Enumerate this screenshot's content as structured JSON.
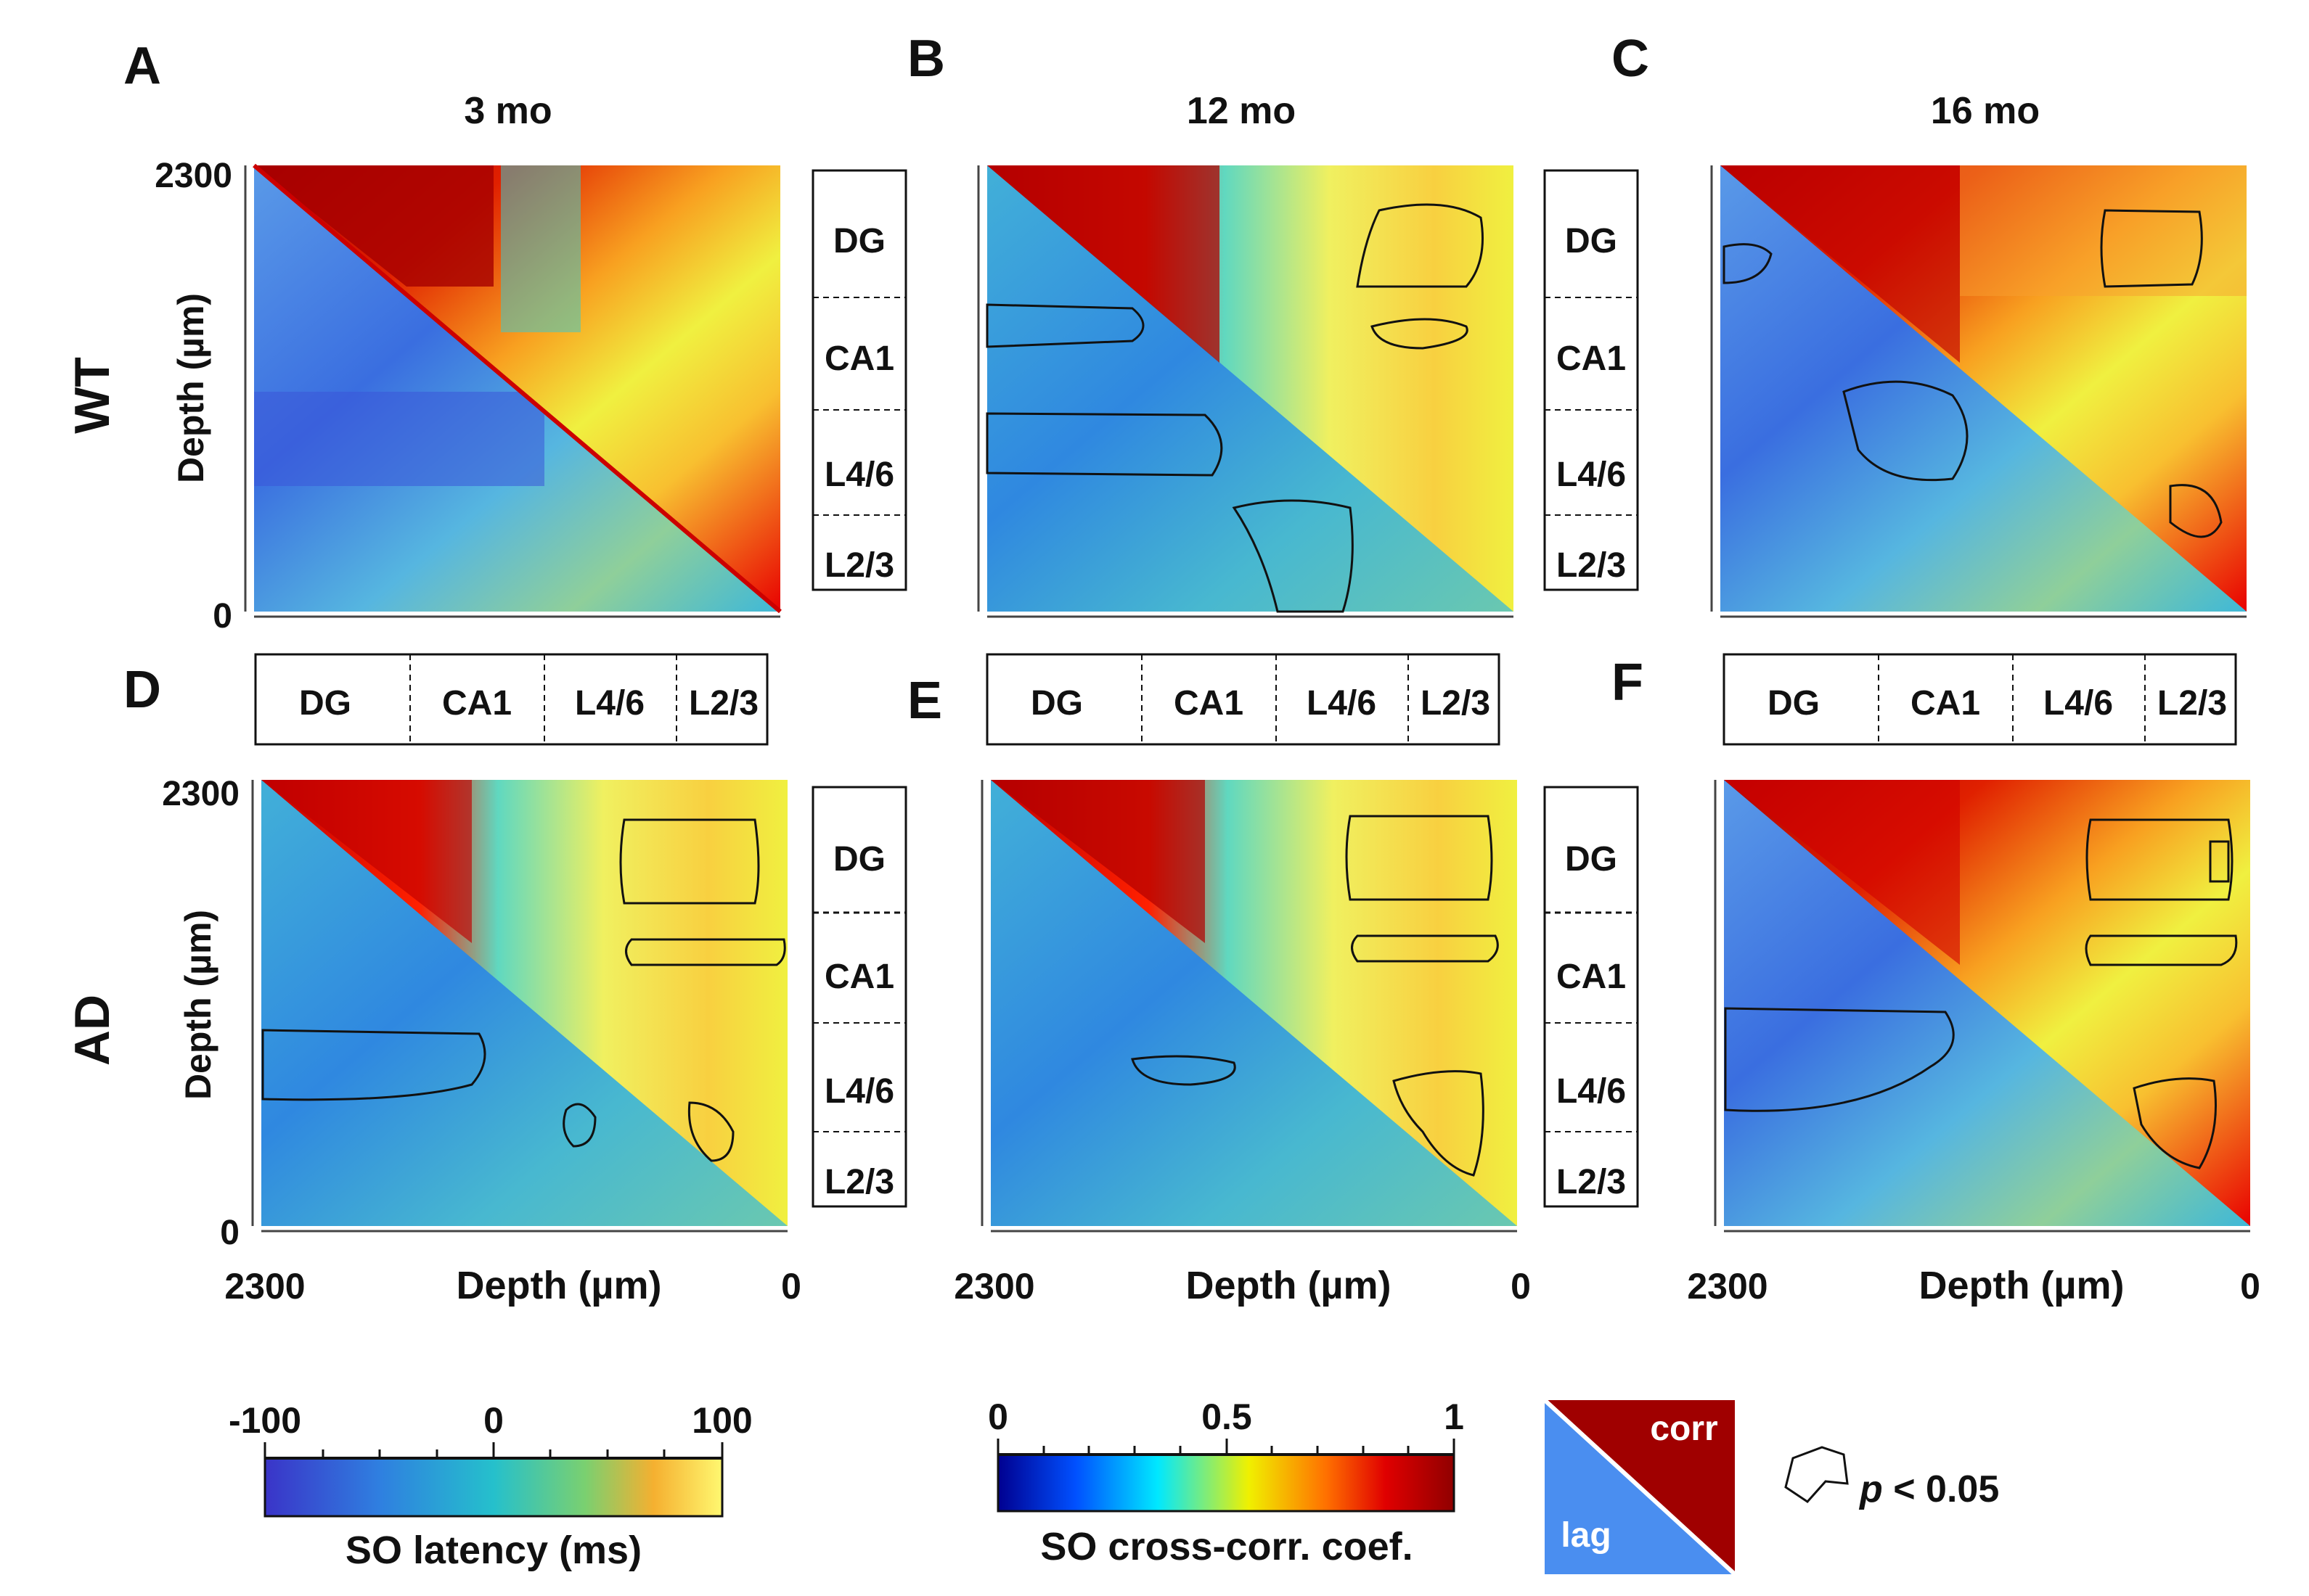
{
  "figure": {
    "panel_letters": [
      "A",
      "B",
      "C",
      "D",
      "E",
      "F"
    ],
    "column_titles": [
      "3 mo",
      "12 mo",
      "16 mo"
    ],
    "row_labels": [
      "WT",
      "AD"
    ],
    "axis_label": "Depth (µm)",
    "y_ticks": [
      "2300",
      "0"
    ],
    "x_ticks": [
      "2300",
      "0"
    ],
    "regions": [
      "DG",
      "CA1",
      "L4/6",
      "L2/3"
    ]
  },
  "legends": {
    "latency": {
      "label": "SO latency (ms)",
      "ticks": [
        "-100",
        "0",
        "100"
      ]
    },
    "corr": {
      "label": "SO cross-corr. coef.",
      "ticks": [
        "0",
        "0.5",
        "1"
      ]
    },
    "triangle": {
      "corr": "corr",
      "lag": "lag"
    },
    "significance": {
      "p_symbol": "p",
      "p_rest": " < 0.05"
    }
  },
  "colors": {
    "corr_dark": "#a00000",
    "lag_blue": "#4a8ef0",
    "latency_scale": [
      "#3a34c8",
      "#2f7fe0",
      "#25c0cc",
      "#7ad070",
      "#f5d040",
      "#fff870"
    ],
    "corr_scale": [
      "#000090",
      "#0050ff",
      "#00e8ff",
      "#f0f000",
      "#ff7000",
      "#e00000",
      "#900000"
    ]
  }
}
